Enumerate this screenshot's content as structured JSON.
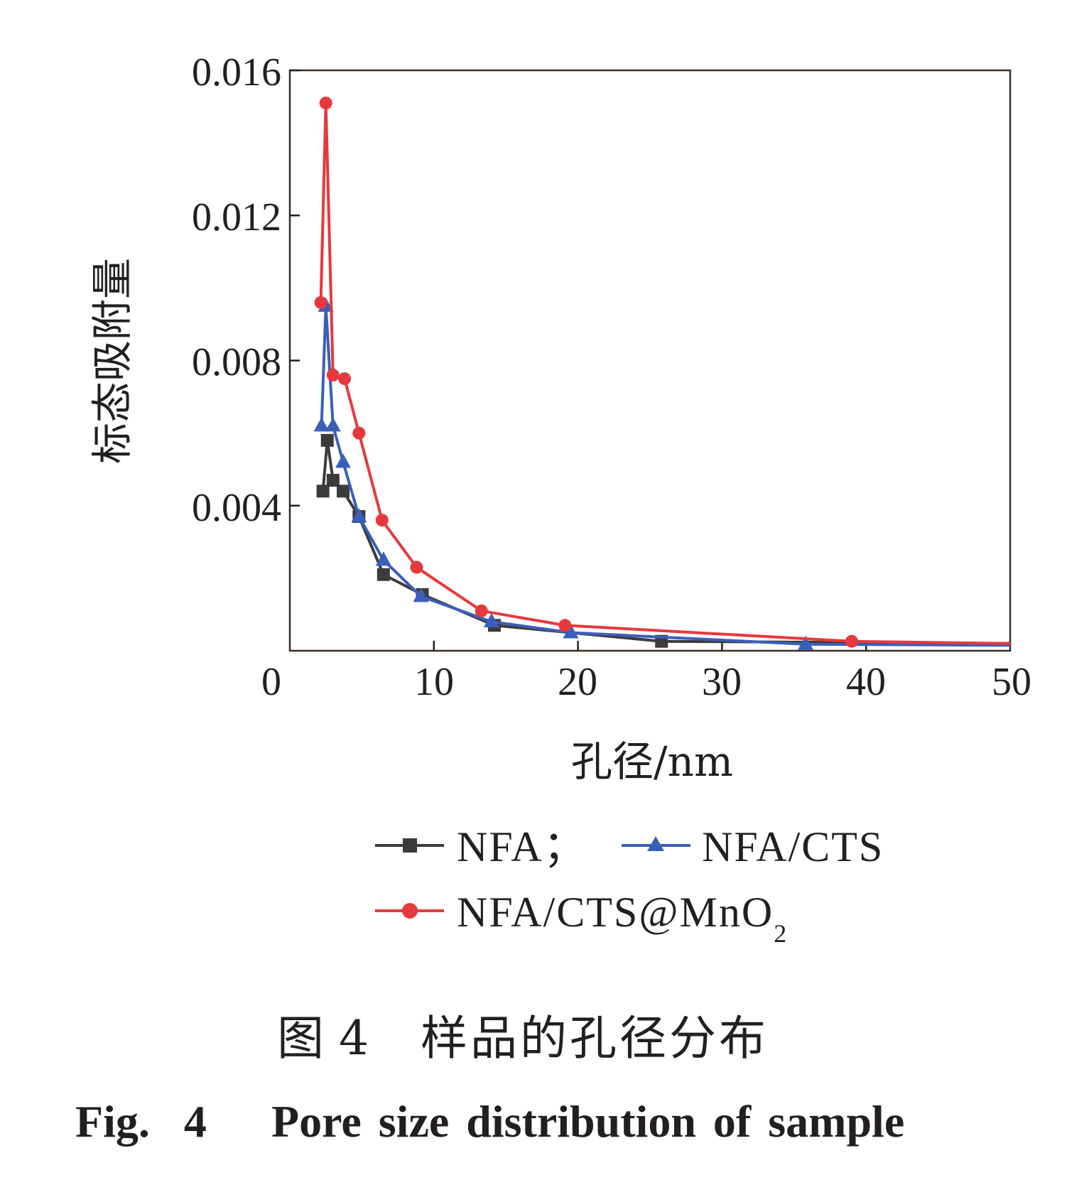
{
  "chart_data": {
    "type": "line",
    "title": "",
    "xlabel": "孔径/nm",
    "ylabel": "标态吸附量",
    "xlim": [
      0,
      50
    ],
    "ylim": [
      0,
      0.016
    ],
    "xticks": [
      "0",
      "10",
      "20",
      "30",
      "40",
      "50"
    ],
    "xtick_values": [
      0,
      10,
      20,
      30,
      40,
      50
    ],
    "yticks": [
      "0.004",
      "0.008",
      "0.012",
      "0.016"
    ],
    "ytick_values": [
      0.004,
      0.008,
      0.012,
      0.016
    ],
    "grid": false,
    "legend_position": "bottom",
    "series": [
      {
        "name": "NFA；",
        "color": "#3d3a3b",
        "marker": "square",
        "x": [
          2.3,
          2.6,
          3.0,
          3.7,
          4.8,
          6.5,
          9.2,
          14.2,
          25.8,
          50
        ],
        "y": [
          0.0044,
          0.0058,
          0.0047,
          0.0044,
          0.0037,
          0.0021,
          0.00155,
          0.0007,
          0.00026,
          0.0002
        ]
      },
      {
        "name": "NFA/CTS",
        "color": "#3a5fb8",
        "marker": "triangle",
        "x": [
          2.2,
          2.5,
          3.0,
          3.7,
          4.8,
          6.5,
          9.1,
          14.0,
          19.5,
          35.8,
          50
        ],
        "y": [
          0.0062,
          0.0095,
          0.0062,
          0.0052,
          0.0037,
          0.0025,
          0.0015,
          0.0008,
          0.0005,
          0.00018,
          0.00015
        ]
      },
      {
        "name": "NFA/CTS@MnO",
        "name_subscript": "2",
        "color": "#e8383d",
        "marker": "circle",
        "x": [
          2.15,
          2.5,
          3.0,
          3.8,
          4.8,
          6.4,
          8.8,
          13.3,
          19.1,
          39.0,
          50
        ],
        "y": [
          0.0096,
          0.0151,
          0.0076,
          0.0075,
          0.006,
          0.0036,
          0.0023,
          0.0011,
          0.0007,
          0.00026,
          0.0002
        ]
      }
    ]
  },
  "caption": {
    "cn_label": "图 4",
    "cn_text": "样品的孔径分布",
    "en_label": "Fig.  4",
    "en_text": "Pore size distribution of sample"
  }
}
